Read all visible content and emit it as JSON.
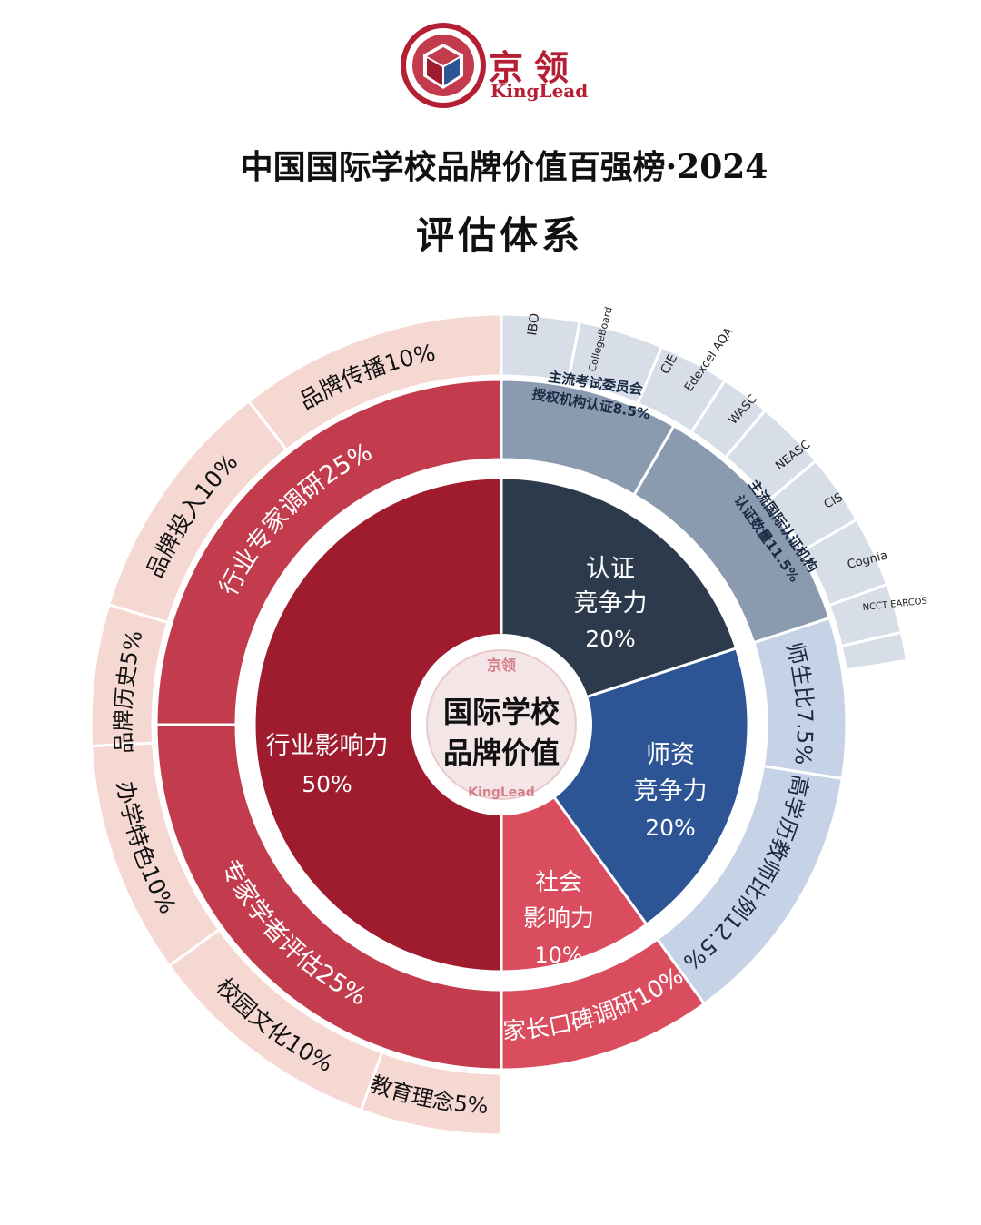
{
  "brand": {
    "cn": "京领",
    "en": "KingLead",
    "badge_cn": "京领",
    "badge_en": "KingLead"
  },
  "title": "中国国际学校品牌价值百强榜·2024",
  "subtitle": "评估体系",
  "center": {
    "line1": "国际学校",
    "line2": "品牌价值"
  },
  "colors": {
    "dark_red": "#9e1c2e",
    "mid_red": "#c23c4e",
    "pink_red": "#d94d5f",
    "light_pink": "#f6d8d2",
    "navy": "#2d3a4b",
    "blue": "#2d5595",
    "slate": "#8a9bb0",
    "light_slate": "#d7dee7",
    "light_blue": "#c6d3e6"
  },
  "chart_data": {
    "type": "sunburst",
    "inner": [
      {
        "name": "行业影响力",
        "value": "50%",
        "weight": 50
      },
      {
        "name": "认证竞争力",
        "value": "20%",
        "weight": 20
      },
      {
        "name": "师资竞争力",
        "value": "20%",
        "weight": 20
      },
      {
        "name": "社会影响力",
        "value": "10%",
        "weight": 10
      }
    ],
    "middle": [
      {
        "label": "行业专家调研25%",
        "weight": 25
      },
      {
        "label": "专家学者评估25%",
        "weight": 25
      },
      {
        "label": "主流考试委员会授权机构认证8.5%",
        "line1": "主流考试委员会",
        "line2": "授权机构认证8.5%",
        "weight": 8.5
      },
      {
        "label": "主流国际认证机构认证数量11.5%",
        "line1": "主流国际认证机构",
        "line2": "认证数量11.5%",
        "weight": 11.5
      },
      {
        "label": "师生比7.5%",
        "weight": 7.5
      },
      {
        "label": "高学历教师比例12.5%",
        "weight": 12.5
      },
      {
        "label": "家长口碑调研10%",
        "weight": 10
      }
    ],
    "outer": [
      {
        "label": "品牌传播10%",
        "weight": 10
      },
      {
        "label": "品牌投入10%",
        "weight": 10
      },
      {
        "label": "品牌历史5%",
        "weight": 5
      },
      {
        "label": "办学特色10%",
        "weight": 10
      },
      {
        "label": "校园文化10%",
        "weight": 10
      },
      {
        "label": "教育理念5%",
        "weight": 5
      }
    ],
    "exam_boards": [
      "IBO",
      "CollegeBoard",
      "CIE",
      "Edexcel AQA"
    ],
    "accreditors": [
      "WASC",
      "NEASC",
      "CIS",
      "Cognia",
      "NCCT EARCOS"
    ]
  }
}
